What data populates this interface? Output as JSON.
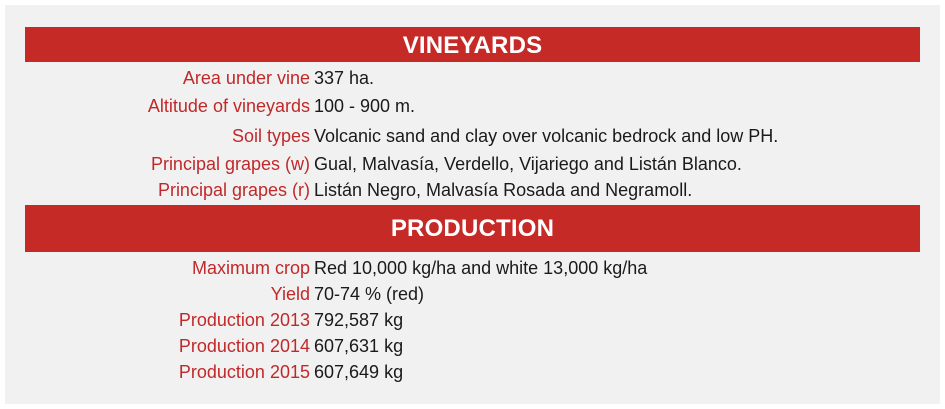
{
  "vineyards": {
    "title": "VINEYARDS",
    "rows": [
      {
        "label": "Area under vine",
        "value": "337 ha."
      },
      {
        "label": "Altitude of vineyards",
        "value": "100 - 900 m."
      },
      {
        "label": "Soil types",
        "value": "Volcanic sand and clay over volcanic bedrock and low PH."
      },
      {
        "label": "Principal grapes (w)",
        "value": "Gual, Malvasía, Verdello, Vijariego and Listán Blanco."
      },
      {
        "label": "Principal grapes (r)",
        "value": "Listán Negro, Malvasía Rosada and Negramoll."
      }
    ]
  },
  "production": {
    "title": "PRODUCTION",
    "rows": [
      {
        "label": "Maximum crop",
        "value": "Red 10,000 kg/ha and white 13,000 kg/ha"
      },
      {
        "label": "Yield",
        "value": "70-74 % (red)"
      },
      {
        "label": "Production 2013",
        "value": "792,587 kg"
      },
      {
        "label": "Production 2014",
        "value": "607,631 kg"
      },
      {
        "label": "Production 2015",
        "value": "607,649 kg"
      }
    ]
  },
  "colors": {
    "header_bg": "#c52a27",
    "label": "#c0292a",
    "value": "#1a1a1a",
    "panel_bg": "#f1f1f1"
  }
}
